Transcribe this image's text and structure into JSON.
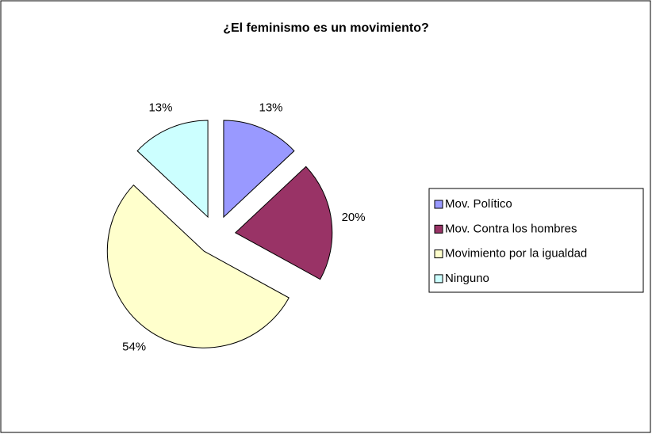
{
  "chart_data": {
    "type": "pie",
    "title": "¿El feminismo es un movimiento?",
    "categories": [
      "Mov. Político",
      "Mov. Contra los hombres",
      "Movimiento por la igualdad",
      "Ninguno"
    ],
    "values": [
      13,
      20,
      54,
      13
    ],
    "value_labels": [
      "13%",
      "20%",
      "54%",
      "13%"
    ],
    "colors": [
      "#9999ff",
      "#993366",
      "#ffffcc",
      "#ccffff"
    ],
    "legend": "right"
  }
}
